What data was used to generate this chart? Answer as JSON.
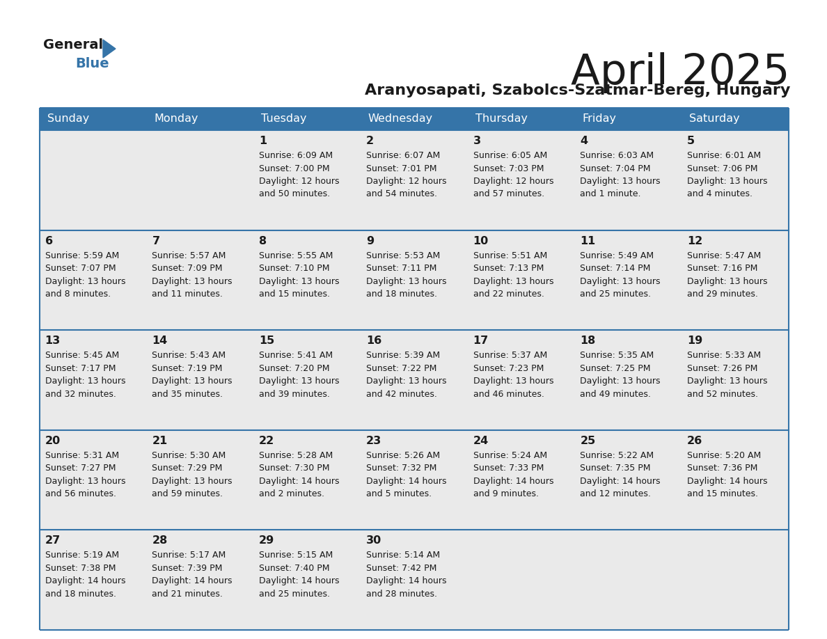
{
  "title": "April 2025",
  "subtitle": "Aranyosapati, Szabolcs-Szatmar-Bereg, Hungary",
  "header_color": "#3574a8",
  "header_text_color": "#ffffff",
  "cell_bg_color": "#eaeaea",
  "border_color": "#3574a8",
  "text_color": "#1a1a1a",
  "logo_text1": "General",
  "logo_text2": "Blue",
  "logo_color1": "#1a1a1a",
  "logo_color2": "#3574a8",
  "logo_tri_color": "#3574a8",
  "days_of_week": [
    "Sunday",
    "Monday",
    "Tuesday",
    "Wednesday",
    "Thursday",
    "Friday",
    "Saturday"
  ],
  "calendar": [
    [
      {
        "day": null,
        "sunrise": null,
        "sunset": null,
        "daylight_line1": null,
        "daylight_line2": null
      },
      {
        "day": null,
        "sunrise": null,
        "sunset": null,
        "daylight_line1": null,
        "daylight_line2": null
      },
      {
        "day": "1",
        "sunrise": "6:09 AM",
        "sunset": "7:00 PM",
        "daylight_line1": "Daylight: 12 hours",
        "daylight_line2": "and 50 minutes."
      },
      {
        "day": "2",
        "sunrise": "6:07 AM",
        "sunset": "7:01 PM",
        "daylight_line1": "Daylight: 12 hours",
        "daylight_line2": "and 54 minutes."
      },
      {
        "day": "3",
        "sunrise": "6:05 AM",
        "sunset": "7:03 PM",
        "daylight_line1": "Daylight: 12 hours",
        "daylight_line2": "and 57 minutes."
      },
      {
        "day": "4",
        "sunrise": "6:03 AM",
        "sunset": "7:04 PM",
        "daylight_line1": "Daylight: 13 hours",
        "daylight_line2": "and 1 minute."
      },
      {
        "day": "5",
        "sunrise": "6:01 AM",
        "sunset": "7:06 PM",
        "daylight_line1": "Daylight: 13 hours",
        "daylight_line2": "and 4 minutes."
      }
    ],
    [
      {
        "day": "6",
        "sunrise": "5:59 AM",
        "sunset": "7:07 PM",
        "daylight_line1": "Daylight: 13 hours",
        "daylight_line2": "and 8 minutes."
      },
      {
        "day": "7",
        "sunrise": "5:57 AM",
        "sunset": "7:09 PM",
        "daylight_line1": "Daylight: 13 hours",
        "daylight_line2": "and 11 minutes."
      },
      {
        "day": "8",
        "sunrise": "5:55 AM",
        "sunset": "7:10 PM",
        "daylight_line1": "Daylight: 13 hours",
        "daylight_line2": "and 15 minutes."
      },
      {
        "day": "9",
        "sunrise": "5:53 AM",
        "sunset": "7:11 PM",
        "daylight_line1": "Daylight: 13 hours",
        "daylight_line2": "and 18 minutes."
      },
      {
        "day": "10",
        "sunrise": "5:51 AM",
        "sunset": "7:13 PM",
        "daylight_line1": "Daylight: 13 hours",
        "daylight_line2": "and 22 minutes."
      },
      {
        "day": "11",
        "sunrise": "5:49 AM",
        "sunset": "7:14 PM",
        "daylight_line1": "Daylight: 13 hours",
        "daylight_line2": "and 25 minutes."
      },
      {
        "day": "12",
        "sunrise": "5:47 AM",
        "sunset": "7:16 PM",
        "daylight_line1": "Daylight: 13 hours",
        "daylight_line2": "and 29 minutes."
      }
    ],
    [
      {
        "day": "13",
        "sunrise": "5:45 AM",
        "sunset": "7:17 PM",
        "daylight_line1": "Daylight: 13 hours",
        "daylight_line2": "and 32 minutes."
      },
      {
        "day": "14",
        "sunrise": "5:43 AM",
        "sunset": "7:19 PM",
        "daylight_line1": "Daylight: 13 hours",
        "daylight_line2": "and 35 minutes."
      },
      {
        "day": "15",
        "sunrise": "5:41 AM",
        "sunset": "7:20 PM",
        "daylight_line1": "Daylight: 13 hours",
        "daylight_line2": "and 39 minutes."
      },
      {
        "day": "16",
        "sunrise": "5:39 AM",
        "sunset": "7:22 PM",
        "daylight_line1": "Daylight: 13 hours",
        "daylight_line2": "and 42 minutes."
      },
      {
        "day": "17",
        "sunrise": "5:37 AM",
        "sunset": "7:23 PM",
        "daylight_line1": "Daylight: 13 hours",
        "daylight_line2": "and 46 minutes."
      },
      {
        "day": "18",
        "sunrise": "5:35 AM",
        "sunset": "7:25 PM",
        "daylight_line1": "Daylight: 13 hours",
        "daylight_line2": "and 49 minutes."
      },
      {
        "day": "19",
        "sunrise": "5:33 AM",
        "sunset": "7:26 PM",
        "daylight_line1": "Daylight: 13 hours",
        "daylight_line2": "and 52 minutes."
      }
    ],
    [
      {
        "day": "20",
        "sunrise": "5:31 AM",
        "sunset": "7:27 PM",
        "daylight_line1": "Daylight: 13 hours",
        "daylight_line2": "and 56 minutes."
      },
      {
        "day": "21",
        "sunrise": "5:30 AM",
        "sunset": "7:29 PM",
        "daylight_line1": "Daylight: 13 hours",
        "daylight_line2": "and 59 minutes."
      },
      {
        "day": "22",
        "sunrise": "5:28 AM",
        "sunset": "7:30 PM",
        "daylight_line1": "Daylight: 14 hours",
        "daylight_line2": "and 2 minutes."
      },
      {
        "day": "23",
        "sunrise": "5:26 AM",
        "sunset": "7:32 PM",
        "daylight_line1": "Daylight: 14 hours",
        "daylight_line2": "and 5 minutes."
      },
      {
        "day": "24",
        "sunrise": "5:24 AM",
        "sunset": "7:33 PM",
        "daylight_line1": "Daylight: 14 hours",
        "daylight_line2": "and 9 minutes."
      },
      {
        "day": "25",
        "sunrise": "5:22 AM",
        "sunset": "7:35 PM",
        "daylight_line1": "Daylight: 14 hours",
        "daylight_line2": "and 12 minutes."
      },
      {
        "day": "26",
        "sunrise": "5:20 AM",
        "sunset": "7:36 PM",
        "daylight_line1": "Daylight: 14 hours",
        "daylight_line2": "and 15 minutes."
      }
    ],
    [
      {
        "day": "27",
        "sunrise": "5:19 AM",
        "sunset": "7:38 PM",
        "daylight_line1": "Daylight: 14 hours",
        "daylight_line2": "and 18 minutes."
      },
      {
        "day": "28",
        "sunrise": "5:17 AM",
        "sunset": "7:39 PM",
        "daylight_line1": "Daylight: 14 hours",
        "daylight_line2": "and 21 minutes."
      },
      {
        "day": "29",
        "sunrise": "5:15 AM",
        "sunset": "7:40 PM",
        "daylight_line1": "Daylight: 14 hours",
        "daylight_line2": "and 25 minutes."
      },
      {
        "day": "30",
        "sunrise": "5:14 AM",
        "sunset": "7:42 PM",
        "daylight_line1": "Daylight: 14 hours",
        "daylight_line2": "and 28 minutes."
      },
      {
        "day": null,
        "sunrise": null,
        "sunset": null,
        "daylight_line1": null,
        "daylight_line2": null
      },
      {
        "day": null,
        "sunrise": null,
        "sunset": null,
        "daylight_line1": null,
        "daylight_line2": null
      },
      {
        "day": null,
        "sunrise": null,
        "sunset": null,
        "daylight_line1": null,
        "daylight_line2": null
      }
    ]
  ]
}
